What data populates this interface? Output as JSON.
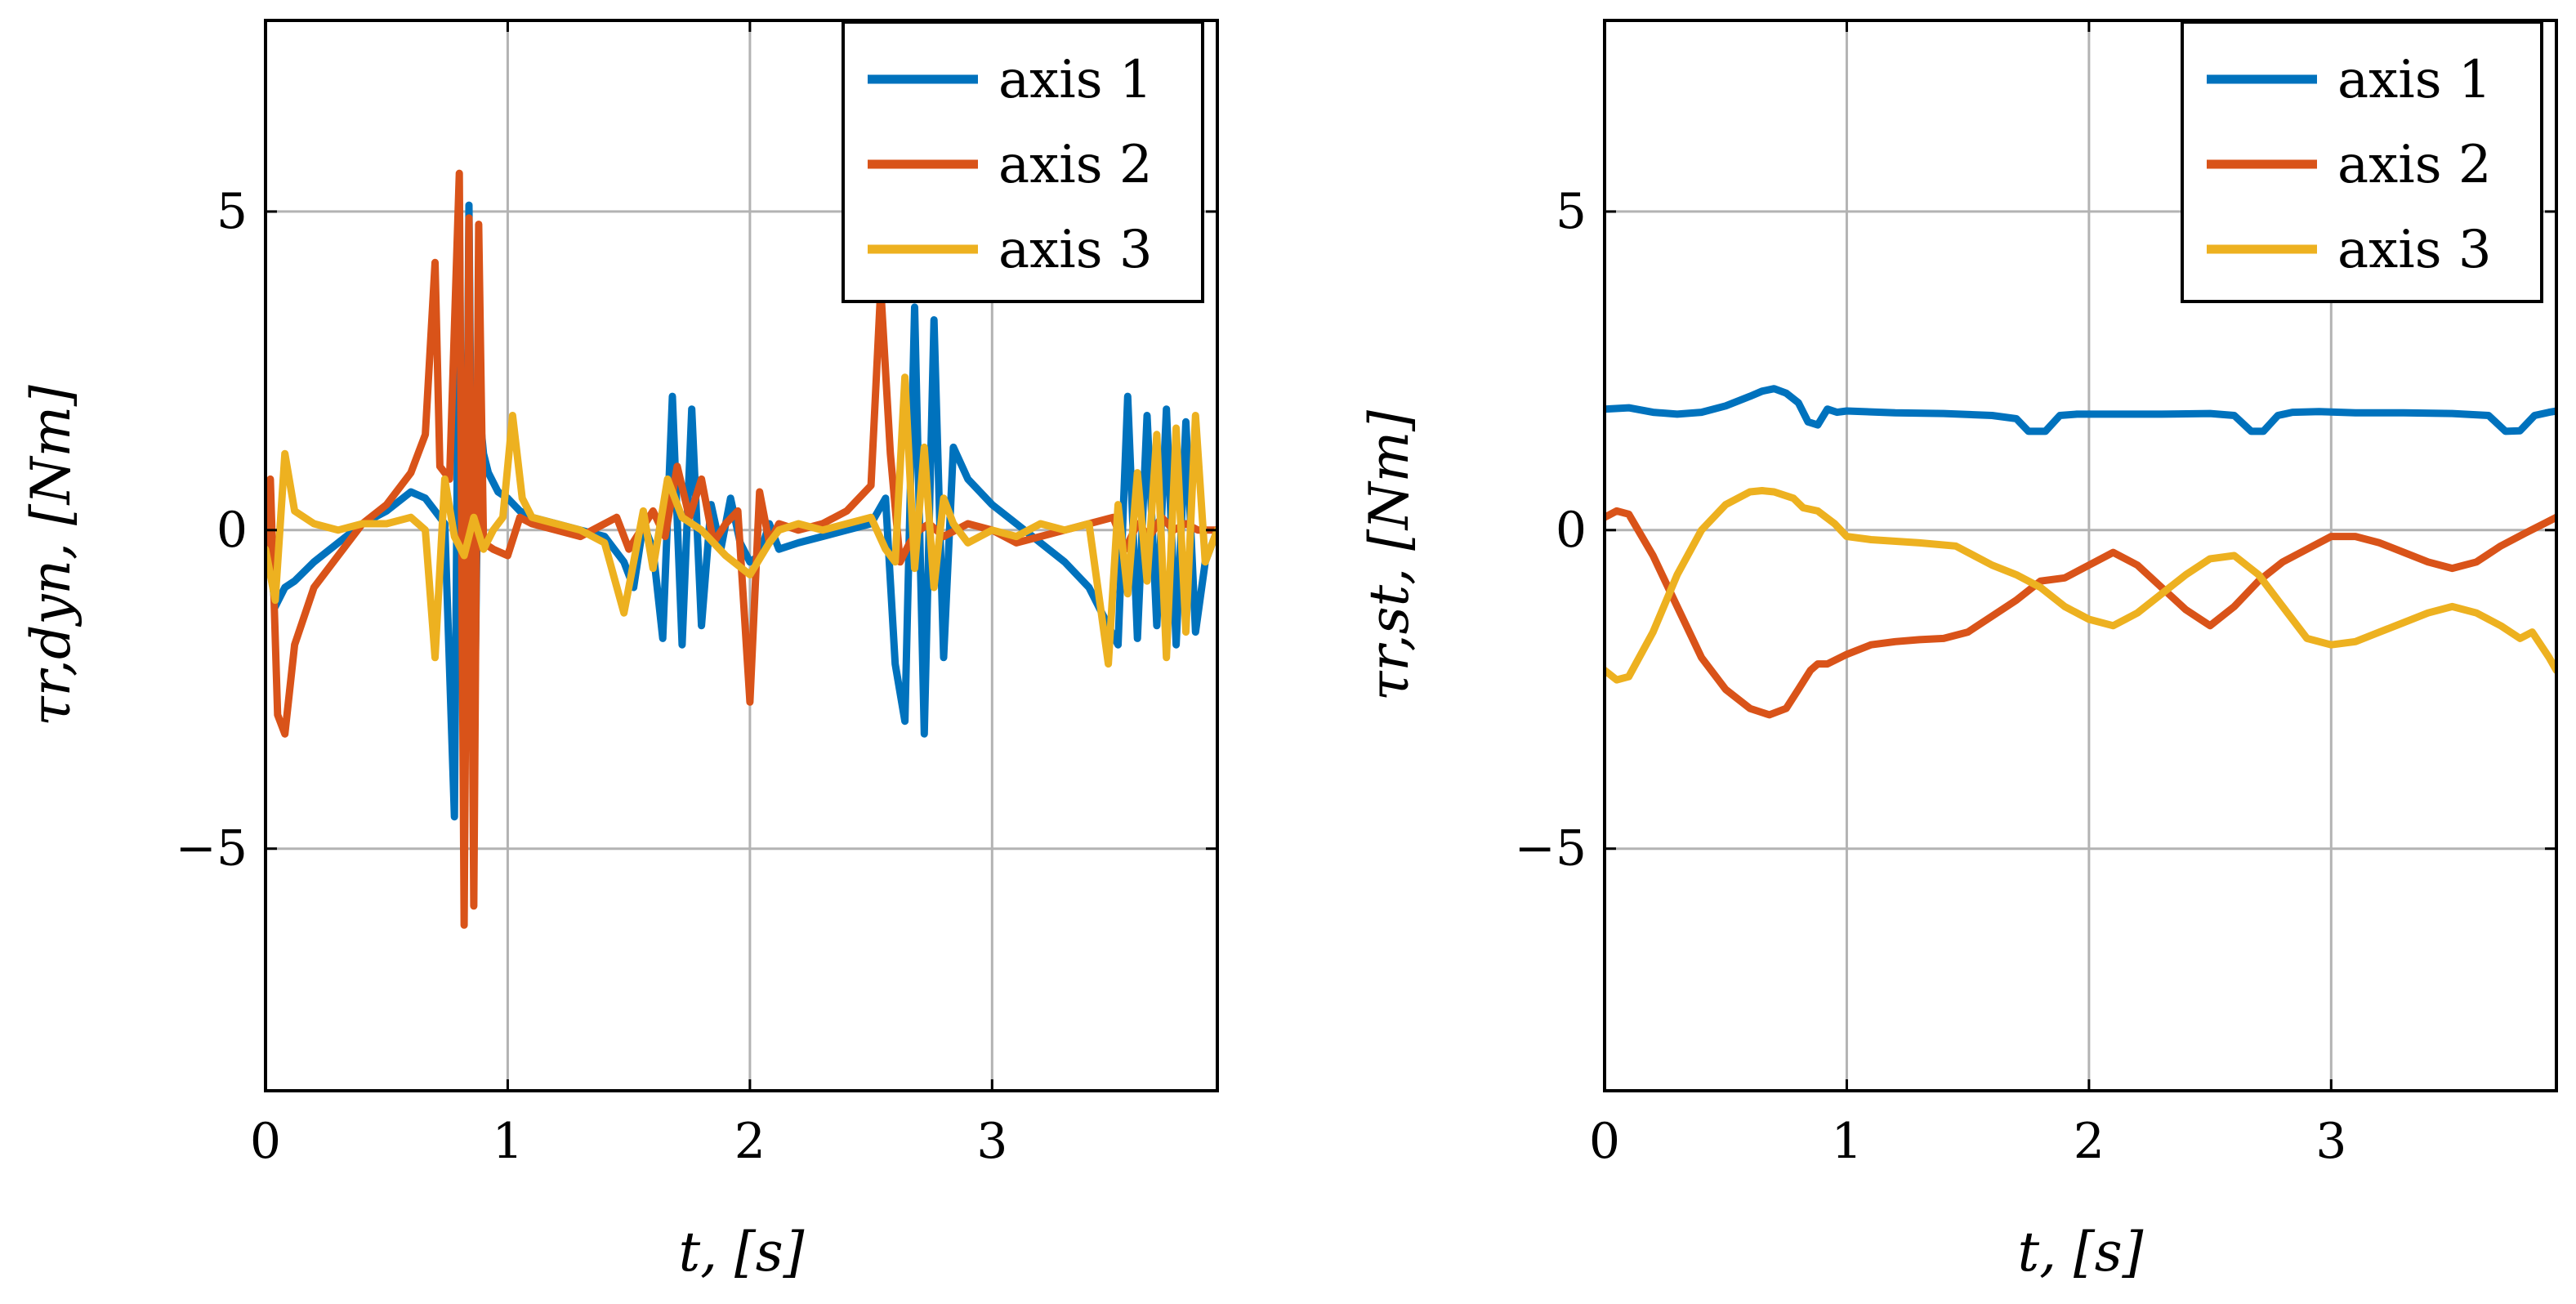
{
  "chart_data": [
    {
      "type": "line",
      "ylabel": "τr,dyn, [Nm]",
      "xlabel": "t, [s]",
      "xlim": [
        0,
        3.93
      ],
      "ylim": [
        -8.8,
        8
      ],
      "xticks": [
        0,
        1,
        2,
        3
      ],
      "yticks": [
        -5,
        0,
        5
      ],
      "ytick_labels": [
        "−5",
        "0",
        "5"
      ],
      "grid": true,
      "legend_position": "top-right",
      "series": [
        {
          "name": "axis 1",
          "color": "#0072BD",
          "x": [
            0,
            0.04,
            0.08,
            0.12,
            0.2,
            0.3,
            0.4,
            0.5,
            0.6,
            0.66,
            0.7,
            0.74,
            0.78,
            0.8,
            0.82,
            0.84,
            0.86,
            0.88,
            0.9,
            0.92,
            0.96,
            1.0,
            1.05,
            1.1,
            1.2,
            1.3,
            1.4,
            1.48,
            1.52,
            1.56,
            1.6,
            1.64,
            1.68,
            1.72,
            1.76,
            1.8,
            1.84,
            1.88,
            1.92,
            1.96,
            2.0,
            2.04,
            2.08,
            2.12,
            2.2,
            2.3,
            2.4,
            2.5,
            2.56,
            2.6,
            2.64,
            2.68,
            2.72,
            2.76,
            2.8,
            2.84,
            2.9,
            3.0,
            3.1,
            3.2,
            3.3,
            3.4,
            3.48,
            3.52,
            3.56,
            3.6,
            3.64,
            3.68,
            3.72,
            3.76,
            3.8,
            3.84,
            3.88,
            3.93
          ],
          "y": [
            0.1,
            -1.2,
            -0.9,
            -0.8,
            -0.5,
            -0.2,
            0.1,
            0.3,
            0.6,
            0.5,
            0.3,
            0.1,
            -4.5,
            5.0,
            -4.7,
            5.1,
            -4.0,
            2.0,
            1.2,
            0.9,
            0.6,
            0.5,
            0.3,
            0.2,
            0.1,
            0.0,
            -0.1,
            -0.5,
            -0.9,
            0.1,
            -0.3,
            -1.7,
            2.1,
            -1.8,
            1.9,
            -1.5,
            0.4,
            -0.3,
            0.5,
            -0.2,
            -0.5,
            -0.4,
            0.1,
            -0.3,
            -0.2,
            -0.1,
            0.0,
            0.1,
            0.5,
            -2.1,
            -3.0,
            3.5,
            -3.2,
            3.3,
            -2.0,
            1.3,
            0.8,
            0.4,
            0.1,
            -0.2,
            -0.5,
            -0.9,
            -1.5,
            -1.8,
            2.1,
            -1.7,
            1.8,
            -1.5,
            1.9,
            -1.8,
            1.7,
            -1.6,
            -0.5,
            0.0
          ]
        },
        {
          "name": "axis 2",
          "color": "#D95319",
          "x": [
            0,
            0.02,
            0.05,
            0.08,
            0.12,
            0.2,
            0.3,
            0.4,
            0.5,
            0.6,
            0.66,
            0.7,
            0.72,
            0.76,
            0.8,
            0.82,
            0.84,
            0.86,
            0.88,
            0.9,
            0.94,
            1.0,
            1.05,
            1.1,
            1.2,
            1.3,
            1.4,
            1.45,
            1.5,
            1.55,
            1.6,
            1.65,
            1.7,
            1.75,
            1.8,
            1.85,
            1.9,
            1.95,
            2.0,
            2.04,
            2.08,
            2.12,
            2.2,
            2.3,
            2.4,
            2.5,
            2.54,
            2.58,
            2.62,
            2.66,
            2.7,
            2.74,
            2.8,
            2.9,
            3.0,
            3.1,
            3.2,
            3.3,
            3.4,
            3.5,
            3.55,
            3.6,
            3.65,
            3.7,
            3.75,
            3.8,
            3.85,
            3.93
          ],
          "y": [
            -0.5,
            0.8,
            -2.9,
            -3.2,
            -1.8,
            -0.9,
            -0.4,
            0.1,
            0.4,
            0.9,
            1.5,
            4.2,
            1.0,
            0.8,
            5.6,
            -6.2,
            4.9,
            -5.9,
            4.8,
            -0.2,
            -0.3,
            -0.4,
            0.2,
            0.1,
            0.0,
            -0.1,
            0.1,
            0.2,
            -0.3,
            0.0,
            0.3,
            -0.1,
            1.0,
            0.2,
            0.8,
            -0.2,
            0.1,
            0.3,
            -2.7,
            0.6,
            -0.2,
            0.1,
            0.0,
            0.1,
            0.3,
            0.7,
            3.8,
            1.2,
            -0.5,
            -0.2,
            0.0,
            0.1,
            -0.1,
            0.1,
            0.0,
            -0.2,
            -0.1,
            0.0,
            0.1,
            0.2,
            -0.3,
            0.1,
            -0.1,
            0.2,
            0.0,
            0.1,
            0.0,
            0.0
          ]
        },
        {
          "name": "axis 3",
          "color": "#EDB120",
          "x": [
            0,
            0.04,
            0.08,
            0.12,
            0.2,
            0.3,
            0.4,
            0.5,
            0.6,
            0.66,
            0.7,
            0.74,
            0.78,
            0.82,
            0.86,
            0.9,
            0.94,
            0.98,
            1.02,
            1.06,
            1.1,
            1.2,
            1.3,
            1.4,
            1.48,
            1.52,
            1.56,
            1.6,
            1.66,
            1.72,
            1.8,
            1.9,
            2.0,
            2.08,
            2.12,
            2.2,
            2.3,
            2.4,
            2.5,
            2.56,
            2.6,
            2.64,
            2.68,
            2.72,
            2.76,
            2.8,
            2.84,
            2.9,
            3.0,
            3.1,
            3.2,
            3.3,
            3.4,
            3.48,
            3.52,
            3.56,
            3.6,
            3.64,
            3.68,
            3.72,
            3.76,
            3.8,
            3.84,
            3.88,
            3.93
          ],
          "y": [
            -0.3,
            -1.1,
            1.2,
            0.3,
            0.1,
            0.0,
            0.1,
            0.1,
            0.2,
            0.0,
            -2.0,
            0.8,
            -0.1,
            -0.4,
            0.2,
            -0.3,
            0.0,
            0.2,
            1.8,
            0.5,
            0.2,
            0.1,
            0.0,
            -0.2,
            -1.3,
            -0.5,
            0.3,
            -0.6,
            0.8,
            0.2,
            0.0,
            -0.4,
            -0.7,
            -0.2,
            0.0,
            0.1,
            0.0,
            0.1,
            0.2,
            -0.3,
            -0.5,
            2.4,
            -0.6,
            1.3,
            -0.9,
            0.5,
            0.1,
            -0.2,
            0.0,
            -0.1,
            0.1,
            0.0,
            0.1,
            -2.1,
            0.4,
            -1.0,
            0.9,
            -0.8,
            1.5,
            -2.0,
            1.6,
            -1.6,
            1.8,
            -0.5,
            0.0
          ]
        }
      ]
    },
    {
      "type": "line",
      "ylabel": "τr,st, [Nm]",
      "xlabel": "t, [s]",
      "xlim": [
        0,
        3.93
      ],
      "ylim": [
        -8.8,
        8
      ],
      "xticks": [
        0,
        1,
        2,
        3
      ],
      "yticks": [
        -5,
        0,
        5
      ],
      "ytick_labels": [
        "−5",
        "0",
        "5"
      ],
      "grid": true,
      "legend_position": "top-right",
      "series": [
        {
          "name": "axis 1",
          "color": "#0072BD",
          "x": [
            0,
            0.1,
            0.2,
            0.3,
            0.4,
            0.5,
            0.6,
            0.65,
            0.7,
            0.75,
            0.8,
            0.84,
            0.88,
            0.92,
            0.96,
            1.0,
            1.2,
            1.4,
            1.6,
            1.7,
            1.75,
            1.82,
            1.88,
            1.95,
            2.1,
            2.3,
            2.5,
            2.6,
            2.67,
            2.72,
            2.78,
            2.84,
            2.95,
            3.1,
            3.3,
            3.5,
            3.65,
            3.72,
            3.78,
            3.84,
            3.9,
            3.93
          ],
          "y": [
            1.9,
            1.92,
            1.85,
            1.82,
            1.85,
            1.95,
            2.1,
            2.18,
            2.22,
            2.15,
            2.0,
            1.7,
            1.65,
            1.9,
            1.85,
            1.87,
            1.84,
            1.83,
            1.8,
            1.75,
            1.55,
            1.55,
            1.8,
            1.82,
            1.82,
            1.82,
            1.83,
            1.8,
            1.55,
            1.55,
            1.8,
            1.85,
            1.86,
            1.84,
            1.84,
            1.83,
            1.8,
            1.55,
            1.56,
            1.8,
            1.85,
            1.87
          ]
        },
        {
          "name": "axis 2",
          "color": "#D95319",
          "x": [
            0,
            0.05,
            0.1,
            0.2,
            0.3,
            0.4,
            0.5,
            0.6,
            0.68,
            0.75,
            0.8,
            0.85,
            0.88,
            0.92,
            1.0,
            1.1,
            1.2,
            1.3,
            1.4,
            1.5,
            1.6,
            1.7,
            1.8,
            1.9,
            2.0,
            2.1,
            2.2,
            2.3,
            2.4,
            2.5,
            2.6,
            2.7,
            2.8,
            2.9,
            3.0,
            3.1,
            3.2,
            3.3,
            3.4,
            3.5,
            3.6,
            3.7,
            3.8,
            3.93
          ],
          "y": [
            0.2,
            0.3,
            0.25,
            -0.4,
            -1.2,
            -2.0,
            -2.5,
            -2.8,
            -2.9,
            -2.8,
            -2.5,
            -2.2,
            -2.1,
            -2.1,
            -1.95,
            -1.8,
            -1.75,
            -1.72,
            -1.7,
            -1.6,
            -1.35,
            -1.1,
            -0.8,
            -0.75,
            -0.55,
            -0.35,
            -0.55,
            -0.9,
            -1.25,
            -1.5,
            -1.2,
            -0.8,
            -0.5,
            -0.3,
            -0.1,
            -0.1,
            -0.2,
            -0.35,
            -0.5,
            -0.6,
            -0.5,
            -0.25,
            -0.05,
            0.2
          ]
        },
        {
          "name": "axis 3",
          "color": "#EDB120",
          "x": [
            0,
            0.05,
            0.1,
            0.2,
            0.3,
            0.4,
            0.5,
            0.6,
            0.65,
            0.7,
            0.78,
            0.82,
            0.88,
            0.95,
            1.0,
            1.1,
            1.3,
            1.45,
            1.5,
            1.6,
            1.7,
            1.8,
            1.9,
            2.0,
            2.1,
            2.2,
            2.3,
            2.4,
            2.5,
            2.6,
            2.7,
            2.8,
            2.9,
            3.0,
            3.1,
            3.2,
            3.3,
            3.4,
            3.5,
            3.6,
            3.7,
            3.78,
            3.83,
            3.9,
            3.93
          ],
          "y": [
            -2.2,
            -2.35,
            -2.3,
            -1.6,
            -0.7,
            0.0,
            0.4,
            0.6,
            0.62,
            0.6,
            0.5,
            0.35,
            0.3,
            0.1,
            -0.1,
            -0.15,
            -0.2,
            -0.25,
            -0.35,
            -0.55,
            -0.7,
            -0.9,
            -1.2,
            -1.4,
            -1.5,
            -1.3,
            -1.0,
            -0.7,
            -0.45,
            -0.4,
            -0.7,
            -1.2,
            -1.7,
            -1.8,
            -1.75,
            -1.6,
            -1.45,
            -1.3,
            -1.2,
            -1.3,
            -1.5,
            -1.7,
            -1.6,
            -2.0,
            -2.2
          ]
        }
      ]
    }
  ]
}
